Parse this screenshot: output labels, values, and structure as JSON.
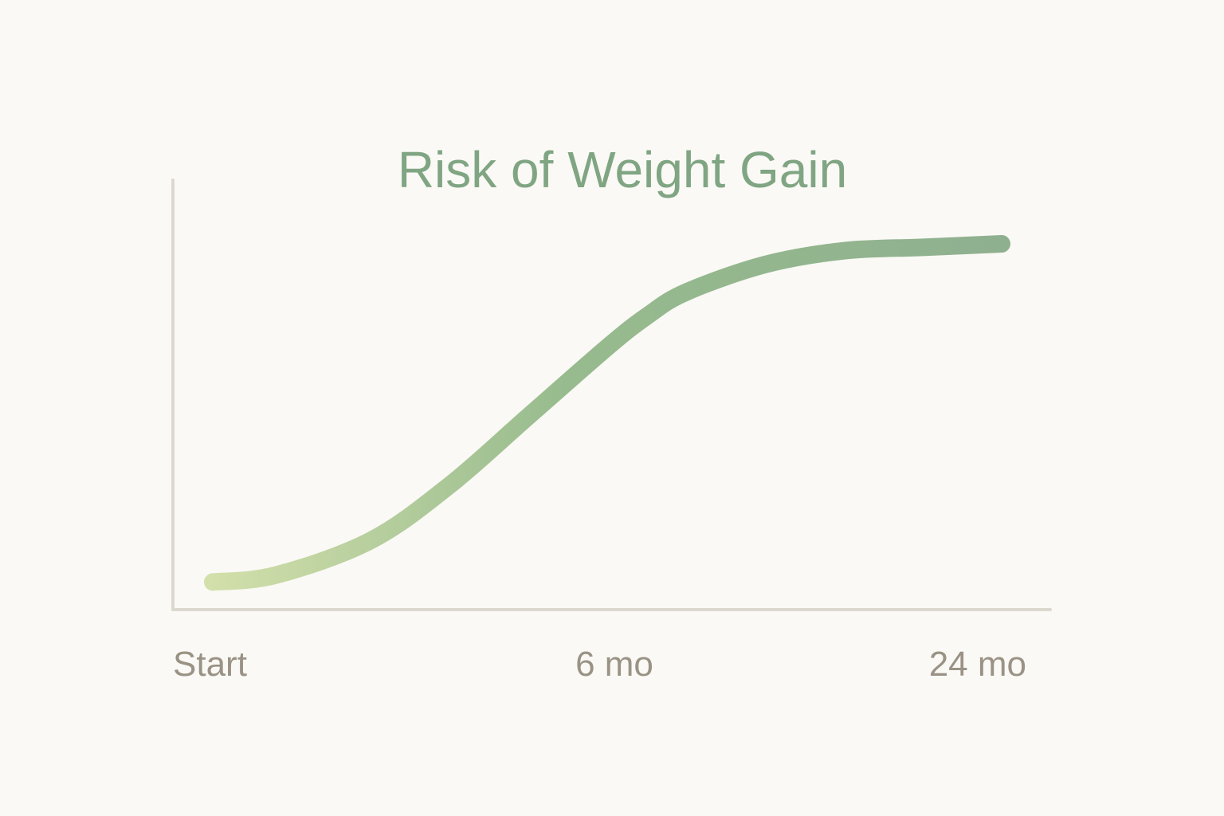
{
  "chart_data": {
    "type": "line",
    "title": "Risk of Weight Gain",
    "xlabel": "",
    "ylabel": "",
    "categories": [
      "Start",
      "6 mo",
      "24 mo"
    ],
    "x": [
      0,
      0.08,
      0.2,
      0.3,
      0.4,
      0.5,
      0.55,
      0.6,
      0.7,
      0.8,
      0.9,
      1.0
    ],
    "series": [
      {
        "values": [
          0.02,
          0.04,
          0.14,
          0.3,
          0.5,
          0.7,
          0.79,
          0.86,
          0.94,
          0.98,
          0.99,
          1.0
        ]
      }
    ],
    "ylim": [
      0,
      1.05
    ],
    "grid": false,
    "legend": "none"
  },
  "colors": {
    "background": "#faf9f5",
    "title": "#80a583",
    "line_start": "#d3e0ab",
    "line_mid": "#97bb8e",
    "line_end": "#8fb08f",
    "axis": "#dcd8cf",
    "tick_label": "#9a9385"
  }
}
